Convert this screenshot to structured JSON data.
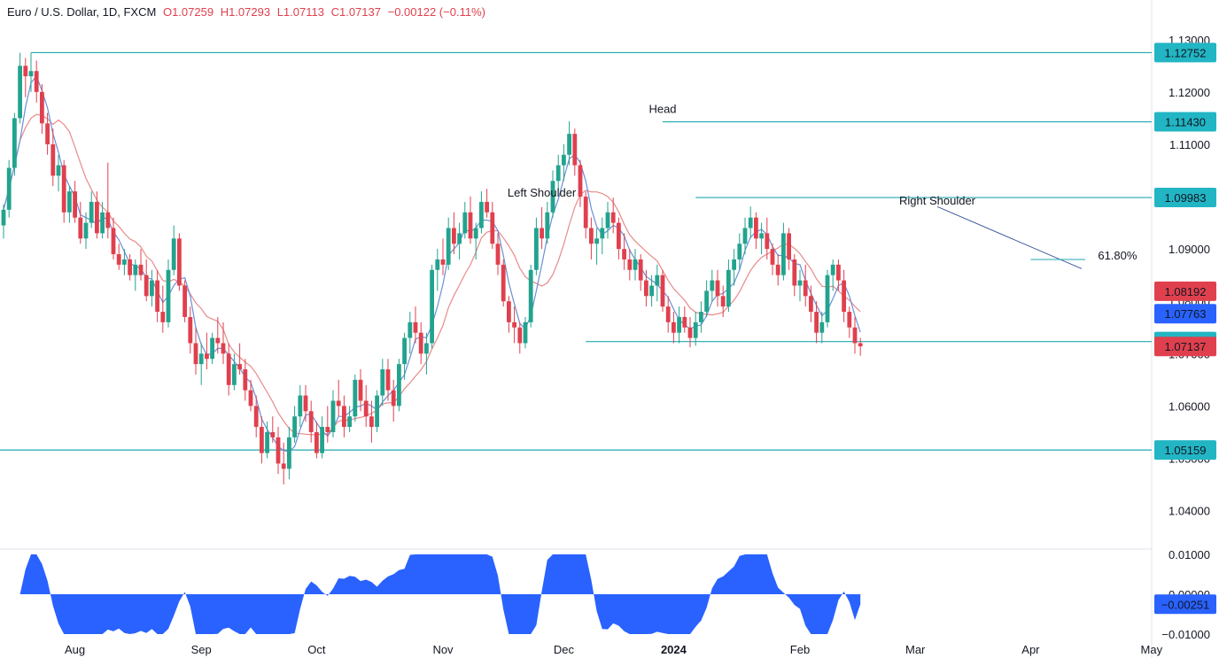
{
  "header": {
    "symbol": "Euro / U.S. Dollar, 1D, FXCM",
    "open": "O1.07259",
    "high": "H1.07293",
    "low": "L1.07113",
    "close": "C1.07137",
    "change": "−0.00122 (−0.11%)"
  },
  "colors": {
    "up": "#22a38e",
    "down": "#e0404e",
    "level_line": "#22a8b0",
    "ma_fast": "#6b8fd6",
    "ma_slow": "#e88a8a",
    "oscillator": "#2962ff",
    "badge_teal": "#22b5c4",
    "badge_blue": "#2962ff",
    "badge_red": "#e0404e",
    "trendline": "#3a5a9c"
  },
  "chart_data": {
    "type": "candlestick",
    "instrument": "EUR/USD",
    "timeframe": "1D",
    "price_axis": {
      "ylim": [
        1.0335,
        1.1325
      ],
      "ticks": [
        "1.13000",
        "1.12000",
        "1.11000",
        "1.10000",
        "1.09000",
        "1.08000",
        "1.07000",
        "1.06000",
        "1.05000",
        "1.04000"
      ]
    },
    "time_axis": {
      "labels": [
        {
          "label": "Aug",
          "bar": 13
        },
        {
          "label": "Sep",
          "bar": 36
        },
        {
          "label": "Oct",
          "bar": 57
        },
        {
          "label": "Nov",
          "bar": 80
        },
        {
          "label": "Dec",
          "bar": 102
        },
        {
          "label": "2024",
          "bar": 122
        },
        {
          "label": "Feb",
          "bar": 145
        },
        {
          "label": "Mar",
          "bar": 166
        },
        {
          "label": "Apr",
          "bar": 187
        },
        {
          "label": "May",
          "bar": 209
        }
      ]
    },
    "levels": [
      {
        "value": 1.12752,
        "label": "1.12752",
        "from_bar": 5,
        "to_right": true
      },
      {
        "value": 1.1143,
        "label": "1.11430",
        "from_bar": 120,
        "to_right": true
      },
      {
        "value": 1.09983,
        "label": "1.09983",
        "from_bar": 126,
        "to_right": true
      },
      {
        "value": 1.07231,
        "label": "1.07231",
        "from_bar": 106,
        "to_right": true
      },
      {
        "value": 1.05159,
        "label": "1.05159",
        "from_bar": -2,
        "to_right": true
      }
    ],
    "badges": [
      {
        "value": 1.12752,
        "label": "1.12752",
        "color": "teal"
      },
      {
        "value": 1.1143,
        "label": "1.11430",
        "color": "teal"
      },
      {
        "value": 1.09983,
        "label": "1.09983",
        "color": "teal"
      },
      {
        "value": 1.08192,
        "label": "1.08192",
        "color": "red"
      },
      {
        "value": 1.07763,
        "label": "1.07763",
        "color": "blue"
      },
      {
        "value": 1.07231,
        "label": "1.07231",
        "color": "teal"
      },
      {
        "value": 1.07137,
        "label": "1.07137",
        "color": "red"
      },
      {
        "value": 1.05159,
        "label": "1.05159",
        "color": "teal"
      }
    ],
    "annotations": [
      {
        "text": "Head",
        "bar": 120,
        "price": 1.116
      },
      {
        "text": "Left Shoulder",
        "bar": 98,
        "price": 1.1
      },
      {
        "text": "Right Shoulder",
        "bar": 170,
        "price": 1.0985
      },
      {
        "text": "61.80%",
        "bar": 197,
        "price": 1.088
      }
    ],
    "trendline": {
      "from": {
        "bar": 170,
        "price": 1.0981
      },
      "to": {
        "bar": 195,
        "price": 1.0869
      }
    },
    "fib_line": {
      "from": {
        "bar": 187,
        "price": 1.088
      },
      "to": {
        "bar": 195,
        "price": 1.088
      }
    },
    "ohlc": [
      [
        1.0945,
        1.0985,
        1.092,
        1.0975
      ],
      [
        1.0975,
        1.107,
        1.096,
        1.1055
      ],
      [
        1.1055,
        1.116,
        1.104,
        1.115
      ],
      [
        1.115,
        1.1275,
        1.114,
        1.125
      ],
      [
        1.125,
        1.1265,
        1.119,
        1.123
      ],
      [
        1.123,
        1.1275,
        1.12,
        1.124
      ],
      [
        1.124,
        1.126,
        1.118,
        1.12
      ],
      [
        1.12,
        1.1215,
        1.112,
        1.114
      ],
      [
        1.114,
        1.116,
        1.108,
        1.11
      ],
      [
        1.11,
        1.113,
        1.102,
        1.104
      ],
      [
        1.104,
        1.108,
        1.101,
        1.106
      ],
      [
        1.106,
        1.107,
        1.095,
        1.097
      ],
      [
        1.097,
        1.102,
        1.095,
        1.101
      ],
      [
        1.101,
        1.103,
        1.095,
        1.096
      ],
      [
        1.096,
        1.099,
        1.091,
        1.092
      ],
      [
        1.092,
        1.097,
        1.09,
        1.095
      ],
      [
        1.095,
        1.101,
        1.094,
        1.099
      ],
      [
        1.099,
        1.101,
        1.092,
        1.093
      ],
      [
        1.093,
        1.099,
        1.092,
        1.097
      ],
      [
        1.097,
        1.1065,
        1.092,
        1.094
      ],
      [
        1.094,
        1.096,
        1.088,
        1.089
      ],
      [
        1.089,
        1.091,
        1.086,
        1.087
      ],
      [
        1.087,
        1.09,
        1.085,
        1.088
      ],
      [
        1.088,
        1.089,
        1.084,
        1.085
      ],
      [
        1.085,
        1.088,
        1.082,
        1.087
      ],
      [
        1.087,
        1.09,
        1.084,
        1.085
      ],
      [
        1.085,
        1.088,
        1.08,
        1.081
      ],
      [
        1.081,
        1.086,
        1.079,
        1.084
      ],
      [
        1.084,
        1.086,
        1.076,
        1.078
      ],
      [
        1.078,
        1.083,
        1.074,
        1.076
      ],
      [
        1.076,
        1.088,
        1.075,
        1.086
      ],
      [
        1.086,
        1.0945,
        1.085,
        1.092
      ],
      [
        1.092,
        1.093,
        1.082,
        1.083
      ],
      [
        1.083,
        1.084,
        1.076,
        1.077
      ],
      [
        1.077,
        1.079,
        1.07,
        1.072
      ],
      [
        1.072,
        1.075,
        1.066,
        1.068
      ],
      [
        1.068,
        1.072,
        1.064,
        1.07
      ],
      [
        1.07,
        1.074,
        1.067,
        1.069
      ],
      [
        1.069,
        1.074,
        1.068,
        1.073
      ],
      [
        1.073,
        1.077,
        1.07,
        1.072
      ],
      [
        1.072,
        1.076,
        1.068,
        1.07
      ],
      [
        1.07,
        1.072,
        1.062,
        1.064
      ],
      [
        1.064,
        1.07,
        1.063,
        1.068
      ],
      [
        1.068,
        1.072,
        1.066,
        1.067
      ],
      [
        1.067,
        1.069,
        1.061,
        1.063
      ],
      [
        1.063,
        1.065,
        1.059,
        1.06
      ],
      [
        1.06,
        1.062,
        1.054,
        1.056
      ],
      [
        1.056,
        1.058,
        1.049,
        1.051
      ],
      [
        1.051,
        1.057,
        1.05,
        1.055
      ],
      [
        1.055,
        1.058,
        1.053,
        1.054
      ],
      [
        1.054,
        1.056,
        1.047,
        1.049
      ],
      [
        1.049,
        1.053,
        1.045,
        1.048
      ],
      [
        1.048,
        1.056,
        1.046,
        1.054
      ],
      [
        1.054,
        1.06,
        1.053,
        1.058
      ],
      [
        1.058,
        1.064,
        1.056,
        1.062
      ],
      [
        1.062,
        1.064,
        1.057,
        1.059
      ],
      [
        1.059,
        1.061,
        1.053,
        1.055
      ],
      [
        1.055,
        1.057,
        1.05,
        1.051
      ],
      [
        1.051,
        1.058,
        1.05,
        1.056
      ],
      [
        1.056,
        1.06,
        1.053,
        1.055
      ],
      [
        1.055,
        1.063,
        1.054,
        1.061
      ],
      [
        1.061,
        1.065,
        1.058,
        1.06
      ],
      [
        1.06,
        1.062,
        1.054,
        1.056
      ],
      [
        1.056,
        1.06,
        1.055,
        1.058
      ],
      [
        1.058,
        1.066,
        1.057,
        1.065
      ],
      [
        1.065,
        1.067,
        1.059,
        1.061
      ],
      [
        1.061,
        1.064,
        1.056,
        1.058
      ],
      [
        1.058,
        1.061,
        1.053,
        1.056
      ],
      [
        1.056,
        1.063,
        1.055,
        1.062
      ],
      [
        1.062,
        1.069,
        1.06,
        1.067
      ],
      [
        1.067,
        1.069,
        1.061,
        1.063
      ],
      [
        1.063,
        1.065,
        1.057,
        1.06
      ],
      [
        1.06,
        1.069,
        1.059,
        1.068
      ],
      [
        1.068,
        1.074,
        1.065,
        1.073
      ],
      [
        1.073,
        1.078,
        1.07,
        1.076
      ],
      [
        1.076,
        1.079,
        1.072,
        1.074
      ],
      [
        1.074,
        1.076,
        1.068,
        1.07
      ],
      [
        1.07,
        1.074,
        1.066,
        1.072
      ],
      [
        1.072,
        1.087,
        1.071,
        1.086
      ],
      [
        1.086,
        1.09,
        1.082,
        1.088
      ],
      [
        1.088,
        1.092,
        1.085,
        1.087
      ],
      [
        1.087,
        1.096,
        1.086,
        1.094
      ],
      [
        1.094,
        1.097,
        1.089,
        1.091
      ],
      [
        1.091,
        1.095,
        1.088,
        1.093
      ],
      [
        1.093,
        1.099,
        1.092,
        1.097
      ],
      [
        1.097,
        1.1,
        1.091,
        1.092
      ],
      [
        1.092,
        1.095,
        1.088,
        1.094
      ],
      [
        1.094,
        1.101,
        1.093,
        1.099
      ],
      [
        1.099,
        1.1015,
        1.096,
        1.097
      ],
      [
        1.097,
        1.099,
        1.09,
        1.091
      ],
      [
        1.091,
        1.093,
        1.085,
        1.087
      ],
      [
        1.087,
        1.088,
        1.079,
        1.08
      ],
      [
        1.08,
        1.081,
        1.074,
        1.076
      ],
      [
        1.076,
        1.079,
        1.072,
        1.075
      ],
      [
        1.075,
        1.076,
        1.07,
        1.072
      ],
      [
        1.072,
        1.077,
        1.071,
        1.076
      ],
      [
        1.076,
        1.087,
        1.075,
        1.086
      ],
      [
        1.086,
        1.096,
        1.085,
        1.094
      ],
      [
        1.094,
        1.098,
        1.09,
        1.092
      ],
      [
        1.092,
        1.099,
        1.091,
        1.097
      ],
      [
        1.097,
        1.105,
        1.096,
        1.103
      ],
      [
        1.103,
        1.108,
        1.101,
        1.106
      ],
      [
        1.106,
        1.11,
        1.103,
        1.108
      ],
      [
        1.108,
        1.1144,
        1.106,
        1.112
      ],
      [
        1.112,
        1.113,
        1.104,
        1.106
      ],
      [
        1.106,
        1.107,
        1.098,
        1.1
      ],
      [
        1.1,
        1.101,
        1.092,
        1.094
      ],
      [
        1.094,
        1.096,
        1.088,
        1.091
      ],
      [
        1.091,
        1.094,
        1.087,
        1.092
      ],
      [
        1.092,
        1.096,
        1.089,
        1.094
      ],
      [
        1.094,
        1.099,
        1.092,
        1.097
      ],
      [
        1.097,
        1.0998,
        1.093,
        1.095
      ],
      [
        1.095,
        1.096,
        1.088,
        1.09
      ],
      [
        1.09,
        1.093,
        1.086,
        1.088
      ],
      [
        1.088,
        1.09,
        1.084,
        1.086
      ],
      [
        1.086,
        1.09,
        1.084,
        1.088
      ],
      [
        1.088,
        1.089,
        1.082,
        1.084
      ],
      [
        1.084,
        1.086,
        1.079,
        1.081
      ],
      [
        1.081,
        1.085,
        1.079,
        1.083
      ],
      [
        1.083,
        1.087,
        1.08,
        1.085
      ],
      [
        1.085,
        1.086,
        1.078,
        1.079
      ],
      [
        1.079,
        1.081,
        1.074,
        1.076
      ],
      [
        1.076,
        1.078,
        1.072,
        1.074
      ],
      [
        1.074,
        1.079,
        1.072,
        1.077
      ],
      [
        1.077,
        1.079,
        1.074,
        1.075
      ],
      [
        1.075,
        1.077,
        1.0712,
        1.073
      ],
      [
        1.073,
        1.078,
        1.0715,
        1.076
      ],
      [
        1.076,
        1.08,
        1.074,
        1.078
      ],
      [
        1.078,
        1.084,
        1.077,
        1.082
      ],
      [
        1.082,
        1.086,
        1.08,
        1.084
      ],
      [
        1.084,
        1.086,
        1.079,
        1.081
      ],
      [
        1.081,
        1.083,
        1.077,
        1.079
      ],
      [
        1.079,
        1.088,
        1.078,
        1.086
      ],
      [
        1.086,
        1.09,
        1.083,
        1.088
      ],
      [
        1.088,
        1.093,
        1.086,
        1.091
      ],
      [
        1.091,
        1.096,
        1.089,
        1.094
      ],
      [
        1.094,
        1.0981,
        1.092,
        1.096
      ],
      [
        1.096,
        1.097,
        1.09,
        1.092
      ],
      [
        1.092,
        1.095,
        1.089,
        1.093
      ],
      [
        1.093,
        1.096,
        1.088,
        1.09
      ],
      [
        1.09,
        1.091,
        1.085,
        1.087
      ],
      [
        1.087,
        1.089,
        1.083,
        1.085
      ],
      [
        1.085,
        1.095,
        1.084,
        1.093
      ],
      [
        1.093,
        1.094,
        1.086,
        1.088
      ],
      [
        1.088,
        1.089,
        1.081,
        1.083
      ],
      [
        1.083,
        1.086,
        1.08,
        1.084
      ],
      [
        1.084,
        1.087,
        1.079,
        1.081
      ],
      [
        1.081,
        1.083,
        1.076,
        1.078
      ],
      [
        1.078,
        1.08,
        1.072,
        1.074
      ],
      [
        1.074,
        1.078,
        1.072,
        1.076
      ],
      [
        1.076,
        1.086,
        1.075,
        1.085
      ],
      [
        1.085,
        1.088,
        1.082,
        1.087
      ],
      [
        1.087,
        1.088,
        1.082,
        1.084
      ],
      [
        1.084,
        1.086,
        1.076,
        1.078
      ],
      [
        1.078,
        1.079,
        1.073,
        1.075
      ],
      [
        1.075,
        1.077,
        1.07,
        1.072
      ],
      [
        1.072,
        1.073,
        1.0696,
        1.0714
      ]
    ],
    "ma_fast": [],
    "ma_slow": [],
    "oscillator": {
      "ylim": [
        -0.01,
        0.01
      ],
      "ticks": [
        "0.01000",
        "0.00000",
        "−0.01000"
      ],
      "last_label": "−0.00251",
      "last_value": -0.00251
    }
  }
}
